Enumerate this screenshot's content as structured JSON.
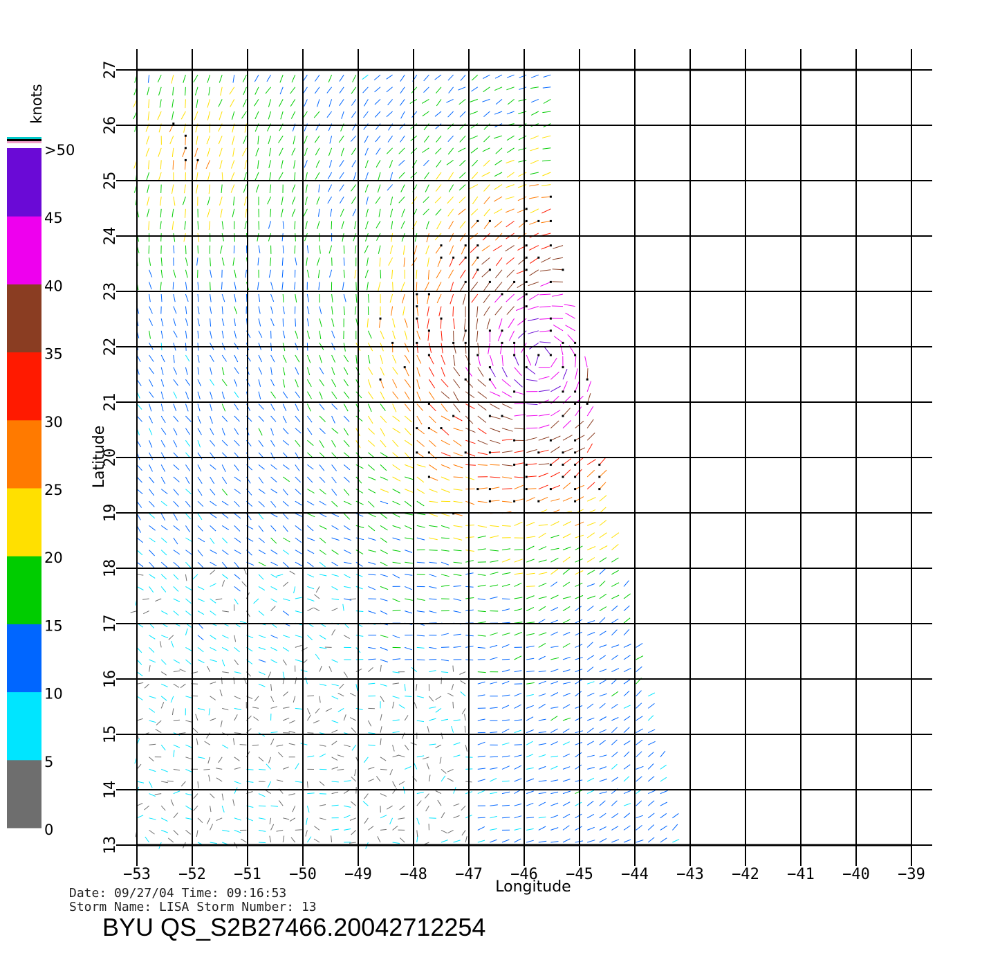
{
  "map": {
    "x_axis": {
      "title": "Longitude",
      "ticks": [
        "−53",
        "−52",
        "−51",
        "−50",
        "−49",
        "−48",
        "−47",
        "−46",
        "−45",
        "−44",
        "−43",
        "−42",
        "−41",
        "−40",
        "−39"
      ]
    },
    "y_axis": {
      "title": "Latitude",
      "ticks": [
        "13",
        "14",
        "15",
        "16",
        "17",
        "18",
        "19",
        "20",
        "21",
        "22",
        "23",
        "24",
        "25",
        "26",
        "27"
      ]
    },
    "lon_range": [
      -53,
      -39
    ],
    "lat_range": [
      13,
      27
    ],
    "swath_edge_east": [
      [
        27,
        -45.3
      ],
      [
        25,
        -45.5
      ],
      [
        22,
        -44.9
      ],
      [
        19,
        -44.5
      ],
      [
        16,
        -43.8
      ],
      [
        13,
        -43.2
      ]
    ]
  },
  "legend": {
    "unit_label": "knots",
    "labels": [
      ">50",
      "45",
      "40",
      "35",
      "30",
      "25",
      "20",
      "15",
      "10",
      "5",
      "0"
    ],
    "bands": [
      {
        "range": "0-5",
        "color": "#6e6e6e"
      },
      {
        "range": "5-10",
        "color": "#00e5ff"
      },
      {
        "range": "10-15",
        "color": "#0066ff"
      },
      {
        "range": "15-20",
        "color": "#00cc00"
      },
      {
        "range": "20-25",
        "color": "#ffe000"
      },
      {
        "range": "25-30",
        "color": "#ff7a00"
      },
      {
        "range": "30-35",
        "color": "#ff1a00"
      },
      {
        "range": "35-40",
        "color": "#8a3d22"
      },
      {
        "range": "40-45",
        "color": "#ee00ee"
      },
      {
        "range": "45-50",
        "color": "#6a0ad6"
      }
    ]
  },
  "info": {
    "date_line": "Date: 09/27/04   Time: 09:16:53",
    "storm_line": "Storm  Name: LISA   Storm  Number: 13",
    "product_title": "BYU  QS_S2B27466.20042712254"
  },
  "wind_regions": [
    {
      "area": "NE swath near -45.5/22 (max winds)",
      "speed_class": "40-50"
    },
    {
      "area": "-47..-45 / 20-26",
      "speed_class": "30-40"
    },
    {
      "area": "-49..-47 / 19-24",
      "speed_class": "20-30"
    },
    {
      "area": "-53..-51 / 24-27",
      "speed_class": "20-30"
    },
    {
      "area": "-53..-50 / 13-16",
      "speed_class": "0-5"
    },
    {
      "area": "-50..-44 / 15-19",
      "speed_class": "5-15"
    }
  ]
}
